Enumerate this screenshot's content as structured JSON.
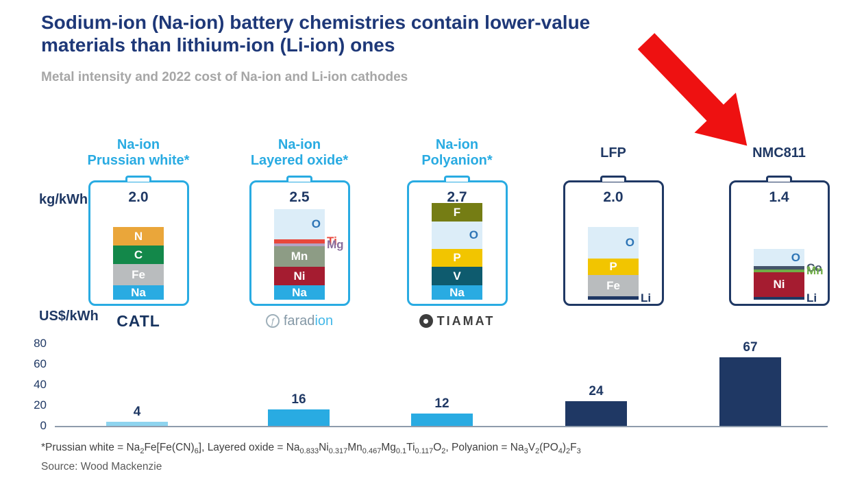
{
  "header": {
    "title_lines": [
      "Sodium-ion (Na-ion) battery chemistries contain lower-value",
      "materials than lithium-ion (Li-ion) ones"
    ],
    "subtitle": "Metal intensity and 2022 cost of Na-ion and Li-ion cathodes"
  },
  "colors": {
    "accent_cyan": "#29abe2",
    "navy": "#1f3864",
    "title_navy": "#1e3878",
    "subtitle_gray": "#a6a6a6",
    "arrow_red": "#ee1111",
    "axis_line": "#8e9bab"
  },
  "axis_labels": {
    "top_unit": "kg/kWh",
    "bottom_unit": "US$/kWh"
  },
  "batteries": [
    {
      "name": "na-ion-prussian-white",
      "label_lines": [
        "Na-ion",
        "Prussian white*"
      ],
      "label_color": "#29abe2",
      "outline_color": "#29abe2",
      "kg_per_kwh": "2.0",
      "logo": "CATL",
      "layers": [
        {
          "label": "N",
          "color": "#eaa63a",
          "h": 27,
          "text_color": "#ffffff"
        },
        {
          "label": "C",
          "color": "#13884a",
          "h": 27,
          "text_color": "#ffffff"
        },
        {
          "label": "Fe",
          "color": "#b9bcbe",
          "h": 31,
          "text_color": "#ffffff"
        },
        {
          "label": "Na",
          "color": "#29abe2",
          "h": 21,
          "text_color": "#ffffff"
        }
      ]
    },
    {
      "name": "na-ion-layered-oxide",
      "label_lines": [
        "Na-ion",
        "Layered oxide*"
      ],
      "label_color": "#29abe2",
      "outline_color": "#29abe2",
      "kg_per_kwh": "2.5",
      "logo_main": "farad",
      "logo_accent": "ion",
      "layers": [
        {
          "label": "O",
          "color": "#dcedf8",
          "h": 44,
          "text_color": "#2e75b6"
        },
        {
          "label": "",
          "color": "#e8483c",
          "h": 6,
          "outside_label": "Ti",
          "outside_color": "#e8483c"
        },
        {
          "label": "",
          "color": "#b5a3c4",
          "h": 4,
          "outside_label": "Mg",
          "outside_color": "#8a6d9c"
        },
        {
          "label": "Mn",
          "color": "#8d9c85",
          "h": 30,
          "text_color": "#ffffff"
        },
        {
          "label": "Ni",
          "color": "#a51c30",
          "h": 27,
          "text_color": "#ffffff"
        },
        {
          "label": "Na",
          "color": "#29abe2",
          "h": 21,
          "text_color": "#ffffff"
        }
      ]
    },
    {
      "name": "na-ion-polyanion",
      "label_lines": [
        "Na-ion",
        "Polyanion*"
      ],
      "label_color": "#29abe2",
      "outline_color": "#29abe2",
      "kg_per_kwh": "2.7",
      "logo": "TIAMAT",
      "layers": [
        {
          "label": "F",
          "color": "#757d14",
          "h": 27,
          "text_color": "#ffffff"
        },
        {
          "label": "O",
          "color": "#dcedf8",
          "h": 40,
          "text_color": "#2e75b6"
        },
        {
          "label": "P",
          "color": "#f2c500",
          "h": 26,
          "text_color": "#ffffff"
        },
        {
          "label": "V",
          "color": "#0e5b6e",
          "h": 27,
          "text_color": "#ffffff"
        },
        {
          "label": "Na",
          "color": "#29abe2",
          "h": 21,
          "text_color": "#ffffff"
        }
      ]
    },
    {
      "name": "lfp",
      "label_lines": [
        "LFP"
      ],
      "label_color": "#1f3864",
      "outline_color": "#1f3864",
      "kg_per_kwh": "2.0",
      "layers": [
        {
          "label": "O",
          "color": "#dcedf8",
          "h": 46,
          "text_color": "#2e75b6"
        },
        {
          "label": "P",
          "color": "#f2c500",
          "h": 24,
          "text_color": "#ffffff"
        },
        {
          "label": "Fe",
          "color": "#b9bcbe",
          "h": 31,
          "text_color": "#ffffff"
        },
        {
          "label": "",
          "color": "#1f3864",
          "h": 5,
          "outside_label": "Li",
          "outside_color": "#1f3864"
        }
      ]
    },
    {
      "name": "nmc811",
      "label_lines": [
        "NMC811"
      ],
      "label_color": "#1f3864",
      "outline_color": "#1f3864",
      "kg_per_kwh": "1.4",
      "layers": [
        {
          "label": "O",
          "color": "#dcedf8",
          "h": 25,
          "text_color": "#2e75b6"
        },
        {
          "label": "",
          "color": "#44546a",
          "h": 5,
          "outside_label": "Co",
          "outside_color": "#44546a"
        },
        {
          "label": "",
          "color": "#70ad47",
          "h": 4,
          "outside_label": "Mn",
          "outside_color": "#70ad47"
        },
        {
          "label": "Ni",
          "color": "#a51c30",
          "h": 36,
          "text_color": "#ffffff"
        },
        {
          "label": "",
          "color": "#1f3864",
          "h": 4,
          "outside_label": "Li",
          "outside_color": "#1f3864"
        }
      ]
    }
  ],
  "chart_data": {
    "type": "bar",
    "title": "2022 cost of Na-ion and Li-ion cathodes (US$/kWh)",
    "categories": [
      "Na-ion Prussian white*",
      "Na-ion Layered oxide*",
      "Na-ion Polyanion*",
      "LFP",
      "NMC811"
    ],
    "values": [
      4,
      16,
      12,
      24,
      67
    ],
    "bar_colors": [
      "#8ed4ef",
      "#29abe2",
      "#29abe2",
      "#1f3864",
      "#1f3864"
    ],
    "metal_intensity_kg_per_kwh": [
      2.0,
      2.5,
      2.7,
      2.0,
      1.4
    ],
    "xlabel": "",
    "ylabel": "US$/kWh",
    "ylim": [
      0,
      80
    ],
    "yticks": [
      0,
      20,
      40,
      60,
      80
    ],
    "grid": false,
    "legend": false
  },
  "footnote": {
    "segments": [
      {
        "t": "*Prussian white = Na"
      },
      {
        "t": "2",
        "sub": true
      },
      {
        "t": "Fe[Fe(CN)"
      },
      {
        "t": "6",
        "sub": true
      },
      {
        "t": "]"
      },
      {
        "t": ", Layered oxide = Na"
      },
      {
        "t": "0.833",
        "sub": true
      },
      {
        "t": "Ni"
      },
      {
        "t": "0.317",
        "sub": true
      },
      {
        "t": "Mn"
      },
      {
        "t": "0.467",
        "sub": true
      },
      {
        "t": "Mg"
      },
      {
        "t": "0.1",
        "sub": true
      },
      {
        "t": "Ti"
      },
      {
        "t": "0.117",
        "sub": true
      },
      {
        "t": "O"
      },
      {
        "t": "2",
        "sub": true
      },
      {
        "t": ", Polyanion = Na"
      },
      {
        "t": "3",
        "sub": true
      },
      {
        "t": "V"
      },
      {
        "t": "2",
        "sub": true
      },
      {
        "t": "(PO"
      },
      {
        "t": "4",
        "sub": true
      },
      {
        "t": ")"
      },
      {
        "t": "2",
        "sub": true
      },
      {
        "t": "F"
      },
      {
        "t": "3",
        "sub": true
      }
    ]
  },
  "source": "Source: Wood Mackenzie"
}
